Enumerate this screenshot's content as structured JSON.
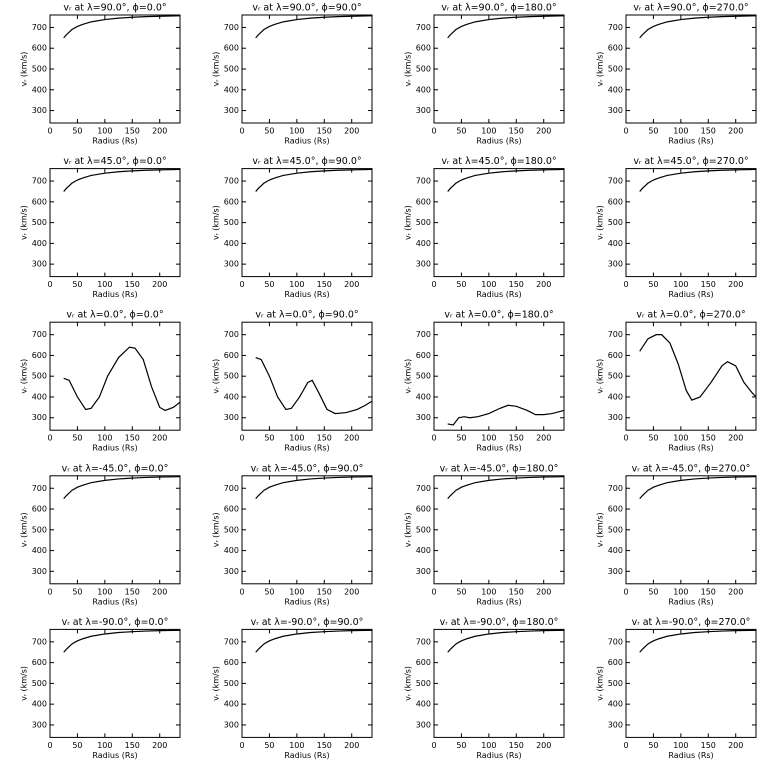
{
  "chart_data": [
    {
      "type": "line",
      "title": "vᵣ at λ=90.0°, ϕ=0.0°",
      "x_label": "Radius (Rs)",
      "y_label": "vᵣ (km/s)",
      "x": [
        25,
        30,
        40,
        50,
        60,
        75,
        100,
        125,
        150,
        175,
        200,
        237
      ],
      "values": [
        650,
        665,
        690,
        705,
        715,
        727,
        738,
        745,
        749,
        752,
        754,
        756
      ],
      "color": "#000000",
      "xlim": [
        0,
        237
      ],
      "ylim": [
        240,
        760
      ],
      "xticks": [
        0,
        50,
        100,
        150,
        200
      ],
      "yticks": [
        300,
        400,
        500,
        600,
        700
      ]
    },
    {
      "type": "line",
      "title": "vᵣ at λ=90.0°, ϕ=90.0°",
      "x_label": "Radius (Rs)",
      "y_label": "vᵣ (km/s)",
      "x": [
        25,
        30,
        40,
        50,
        60,
        75,
        100,
        125,
        150,
        175,
        200,
        237
      ],
      "values": [
        650,
        665,
        690,
        705,
        715,
        727,
        738,
        745,
        749,
        752,
        754,
        756
      ],
      "color": "#000000",
      "xlim": [
        0,
        237
      ],
      "ylim": [
        240,
        760
      ],
      "xticks": [
        0,
        50,
        100,
        150,
        200
      ],
      "yticks": [
        300,
        400,
        500,
        600,
        700
      ]
    },
    {
      "type": "line",
      "title": "vᵣ at λ=90.0°, ϕ=180.0°",
      "x_label": "Radius (Rs)",
      "y_label": "vᵣ (km/s)",
      "x": [
        25,
        30,
        40,
        50,
        60,
        75,
        100,
        125,
        150,
        175,
        200,
        237
      ],
      "values": [
        650,
        665,
        690,
        705,
        715,
        727,
        738,
        745,
        749,
        752,
        754,
        756
      ],
      "color": "#000000",
      "xlim": [
        0,
        237
      ],
      "ylim": [
        240,
        760
      ],
      "xticks": [
        0,
        50,
        100,
        150,
        200
      ],
      "yticks": [
        300,
        400,
        500,
        600,
        700
      ]
    },
    {
      "type": "line",
      "title": "vᵣ at λ=90.0°, ϕ=270.0°",
      "x_label": "Radius (Rs)",
      "y_label": "vᵣ (km/s)",
      "x": [
        25,
        30,
        40,
        50,
        60,
        75,
        100,
        125,
        150,
        175,
        200,
        237
      ],
      "values": [
        650,
        665,
        690,
        705,
        715,
        727,
        738,
        745,
        749,
        752,
        754,
        756
      ],
      "color": "#000000",
      "xlim": [
        0,
        237
      ],
      "ylim": [
        240,
        760
      ],
      "xticks": [
        0,
        50,
        100,
        150,
        200
      ],
      "yticks": [
        300,
        400,
        500,
        600,
        700
      ]
    },
    {
      "type": "line",
      "title": "vᵣ at λ=45.0°, ϕ=0.0°",
      "x_label": "Radius (Rs)",
      "y_label": "vᵣ (km/s)",
      "x": [
        25,
        30,
        40,
        50,
        60,
        75,
        100,
        125,
        150,
        175,
        200,
        237
      ],
      "values": [
        650,
        665,
        690,
        705,
        715,
        727,
        738,
        745,
        749,
        752,
        754,
        756
      ],
      "color": "#000000",
      "xlim": [
        0,
        237
      ],
      "ylim": [
        240,
        760
      ],
      "xticks": [
        0,
        50,
        100,
        150,
        200
      ],
      "yticks": [
        300,
        400,
        500,
        600,
        700
      ]
    },
    {
      "type": "line",
      "title": "vᵣ at λ=45.0°, ϕ=90.0°",
      "x_label": "Radius (Rs)",
      "y_label": "vᵣ (km/s)",
      "x": [
        25,
        30,
        40,
        50,
        60,
        75,
        100,
        125,
        150,
        175,
        200,
        237
      ],
      "values": [
        650,
        665,
        690,
        705,
        715,
        727,
        738,
        745,
        749,
        752,
        754,
        756
      ],
      "color": "#000000",
      "xlim": [
        0,
        237
      ],
      "ylim": [
        240,
        760
      ],
      "xticks": [
        0,
        50,
        100,
        150,
        200
      ],
      "yticks": [
        300,
        400,
        500,
        600,
        700
      ]
    },
    {
      "type": "line",
      "title": "vᵣ at λ=45.0°, ϕ=180.0°",
      "x_label": "Radius (Rs)",
      "y_label": "vᵣ (km/s)",
      "x": [
        25,
        30,
        40,
        50,
        60,
        75,
        100,
        125,
        150,
        175,
        200,
        237
      ],
      "values": [
        650,
        665,
        690,
        705,
        715,
        727,
        738,
        745,
        749,
        752,
        754,
        756
      ],
      "color": "#000000",
      "xlim": [
        0,
        237
      ],
      "ylim": [
        240,
        760
      ],
      "xticks": [
        0,
        50,
        100,
        150,
        200
      ],
      "yticks": [
        300,
        400,
        500,
        600,
        700
      ]
    },
    {
      "type": "line",
      "title": "vᵣ at λ=45.0°, ϕ=270.0°",
      "x_label": "Radius (Rs)",
      "y_label": "vᵣ (km/s)",
      "x": [
        25,
        30,
        40,
        50,
        60,
        75,
        100,
        125,
        150,
        175,
        200,
        237
      ],
      "values": [
        650,
        665,
        690,
        705,
        715,
        727,
        738,
        745,
        749,
        752,
        754,
        756
      ],
      "color": "#000000",
      "xlim": [
        0,
        237
      ],
      "ylim": [
        240,
        760
      ],
      "xticks": [
        0,
        50,
        100,
        150,
        200
      ],
      "yticks": [
        300,
        400,
        500,
        600,
        700
      ]
    },
    {
      "type": "line",
      "title": "vᵣ at λ=0.0°, ϕ=0.0°",
      "x_label": "Radius (Rs)",
      "y_label": "vᵣ (km/s)",
      "x": [
        25,
        35,
        50,
        65,
        75,
        90,
        105,
        125,
        145,
        155,
        170,
        185,
        200,
        210,
        225,
        237
      ],
      "values": [
        490,
        480,
        400,
        340,
        345,
        400,
        500,
        590,
        640,
        635,
        580,
        450,
        350,
        335,
        350,
        375
      ],
      "color": "#000000",
      "xlim": [
        0,
        237
      ],
      "ylim": [
        240,
        760
      ],
      "xticks": [
        0,
        50,
        100,
        150,
        200
      ],
      "yticks": [
        300,
        400,
        500,
        600,
        700
      ]
    },
    {
      "type": "line",
      "title": "vᵣ at λ=0.0°, ϕ=90.0°",
      "x_label": "Radius (Rs)",
      "y_label": "vᵣ (km/s)",
      "x": [
        25,
        35,
        50,
        65,
        80,
        90,
        105,
        120,
        128,
        140,
        155,
        170,
        190,
        210,
        225,
        237
      ],
      "values": [
        590,
        580,
        500,
        400,
        340,
        345,
        400,
        470,
        480,
        420,
        340,
        320,
        325,
        340,
        360,
        380
      ],
      "color": "#000000",
      "xlim": [
        0,
        237
      ],
      "ylim": [
        240,
        760
      ],
      "xticks": [
        0,
        50,
        100,
        150,
        200
      ],
      "yticks": [
        300,
        400,
        500,
        600,
        700
      ]
    },
    {
      "type": "line",
      "title": "vᵣ at λ=0.0°, ϕ=180.0°",
      "x_label": "Radius (Rs)",
      "y_label": "vᵣ (km/s)",
      "x": [
        25,
        35,
        45,
        55,
        65,
        80,
        100,
        120,
        135,
        150,
        170,
        185,
        200,
        215,
        237
      ],
      "values": [
        270,
        265,
        300,
        305,
        300,
        305,
        320,
        345,
        360,
        355,
        335,
        315,
        315,
        320,
        335
      ],
      "color": "#000000",
      "xlim": [
        0,
        237
      ],
      "ylim": [
        240,
        760
      ],
      "xticks": [
        0,
        50,
        100,
        150,
        200
      ],
      "yticks": [
        300,
        400,
        500,
        600,
        700
      ]
    },
    {
      "type": "line",
      "title": "vᵣ at λ=0.0°, ϕ=270.0°",
      "x_label": "Radius (Rs)",
      "y_label": "vᵣ (km/s)",
      "x": [
        25,
        40,
        55,
        65,
        80,
        95,
        110,
        120,
        135,
        155,
        175,
        185,
        200,
        215,
        230,
        237
      ],
      "values": [
        620,
        680,
        700,
        700,
        660,
        560,
        430,
        385,
        400,
        470,
        550,
        570,
        550,
        470,
        420,
        400
      ],
      "color": "#000000",
      "xlim": [
        0,
        237
      ],
      "ylim": [
        240,
        760
      ],
      "xticks": [
        0,
        50,
        100,
        150,
        200
      ],
      "yticks": [
        300,
        400,
        500,
        600,
        700
      ]
    },
    {
      "type": "line",
      "title": "vᵣ at λ=-45.0°, ϕ=0.0°",
      "x_label": "Radius (Rs)",
      "y_label": "vᵣ (km/s)",
      "x": [
        25,
        30,
        40,
        50,
        60,
        75,
        100,
        125,
        150,
        175,
        200,
        237
      ],
      "values": [
        650,
        665,
        690,
        705,
        715,
        727,
        738,
        745,
        749,
        752,
        754,
        756
      ],
      "color": "#000000",
      "xlim": [
        0,
        237
      ],
      "ylim": [
        240,
        760
      ],
      "xticks": [
        0,
        50,
        100,
        150,
        200
      ],
      "yticks": [
        300,
        400,
        500,
        600,
        700
      ]
    },
    {
      "type": "line",
      "title": "vᵣ at λ=-45.0°, ϕ=90.0°",
      "x_label": "Radius (Rs)",
      "y_label": "vᵣ (km/s)",
      "x": [
        25,
        30,
        40,
        50,
        60,
        75,
        100,
        125,
        150,
        175,
        200,
        237
      ],
      "values": [
        650,
        665,
        690,
        705,
        715,
        727,
        738,
        745,
        749,
        752,
        754,
        756
      ],
      "color": "#000000",
      "xlim": [
        0,
        237
      ],
      "ylim": [
        240,
        760
      ],
      "xticks": [
        0,
        50,
        100,
        150,
        200
      ],
      "yticks": [
        300,
        400,
        500,
        600,
        700
      ]
    },
    {
      "type": "line",
      "title": "vᵣ at λ=-45.0°, ϕ=180.0°",
      "x_label": "Radius (Rs)",
      "y_label": "vᵣ (km/s)",
      "x": [
        25,
        30,
        40,
        50,
        60,
        75,
        100,
        125,
        150,
        175,
        200,
        237
      ],
      "values": [
        650,
        665,
        690,
        705,
        715,
        727,
        738,
        745,
        749,
        752,
        754,
        756
      ],
      "color": "#000000",
      "xlim": [
        0,
        237
      ],
      "ylim": [
        240,
        760
      ],
      "xticks": [
        0,
        50,
        100,
        150,
        200
      ],
      "yticks": [
        300,
        400,
        500,
        600,
        700
      ]
    },
    {
      "type": "line",
      "title": "vᵣ at λ=-45.0°, ϕ=270.0°",
      "x_label": "Radius (Rs)",
      "y_label": "vᵣ (km/s)",
      "x": [
        25,
        30,
        40,
        50,
        60,
        75,
        100,
        125,
        150,
        175,
        200,
        237
      ],
      "values": [
        650,
        665,
        690,
        705,
        715,
        727,
        738,
        745,
        749,
        752,
        754,
        756
      ],
      "color": "#000000",
      "xlim": [
        0,
        237
      ],
      "ylim": [
        240,
        760
      ],
      "xticks": [
        0,
        50,
        100,
        150,
        200
      ],
      "yticks": [
        300,
        400,
        500,
        600,
        700
      ]
    },
    {
      "type": "line",
      "title": "vᵣ at λ=-90.0°, ϕ=0.0°",
      "x_label": "Radius (Rs)",
      "y_label": "vᵣ (km/s)",
      "x": [
        25,
        30,
        40,
        50,
        60,
        75,
        100,
        125,
        150,
        175,
        200,
        237
      ],
      "values": [
        650,
        665,
        690,
        705,
        715,
        727,
        738,
        745,
        749,
        752,
        754,
        756
      ],
      "color": "#000000",
      "xlim": [
        0,
        237
      ],
      "ylim": [
        240,
        760
      ],
      "xticks": [
        0,
        50,
        100,
        150,
        200
      ],
      "yticks": [
        300,
        400,
        500,
        600,
        700
      ]
    },
    {
      "type": "line",
      "title": "vᵣ at λ=-90.0°, ϕ=90.0°",
      "x_label": "Radius (Rs)",
      "y_label": "vᵣ (km/s)",
      "x": [
        25,
        30,
        40,
        50,
        60,
        75,
        100,
        125,
        150,
        175,
        200,
        237
      ],
      "values": [
        650,
        665,
        690,
        705,
        715,
        727,
        738,
        745,
        749,
        752,
        754,
        756
      ],
      "color": "#000000",
      "xlim": [
        0,
        237
      ],
      "ylim": [
        240,
        760
      ],
      "xticks": [
        0,
        50,
        100,
        150,
        200
      ],
      "yticks": [
        300,
        400,
        500,
        600,
        700
      ]
    },
    {
      "type": "line",
      "title": "vᵣ at λ=-90.0°, ϕ=180.0°",
      "x_label": "Radius (Rs)",
      "y_label": "vᵣ (km/s)",
      "x": [
        25,
        30,
        40,
        50,
        60,
        75,
        100,
        125,
        150,
        175,
        200,
        237
      ],
      "values": [
        650,
        665,
        690,
        705,
        715,
        727,
        738,
        745,
        749,
        752,
        754,
        756
      ],
      "color": "#000000",
      "xlim": [
        0,
        237
      ],
      "ylim": [
        240,
        760
      ],
      "xticks": [
        0,
        50,
        100,
        150,
        200
      ],
      "yticks": [
        300,
        400,
        500,
        600,
        700
      ]
    },
    {
      "type": "line",
      "title": "vᵣ at λ=-90.0°, ϕ=270.0°",
      "x_label": "Radius (Rs)",
      "y_label": "vᵣ (km/s)",
      "x": [
        25,
        30,
        40,
        50,
        60,
        75,
        100,
        125,
        150,
        175,
        200,
        237
      ],
      "values": [
        650,
        665,
        690,
        705,
        715,
        727,
        738,
        745,
        749,
        752,
        754,
        756
      ],
      "color": "#000000",
      "xlim": [
        0,
        237
      ],
      "ylim": [
        240,
        760
      ],
      "xticks": [
        0,
        50,
        100,
        150,
        200
      ],
      "yticks": [
        300,
        400,
        500,
        600,
        700
      ]
    }
  ]
}
